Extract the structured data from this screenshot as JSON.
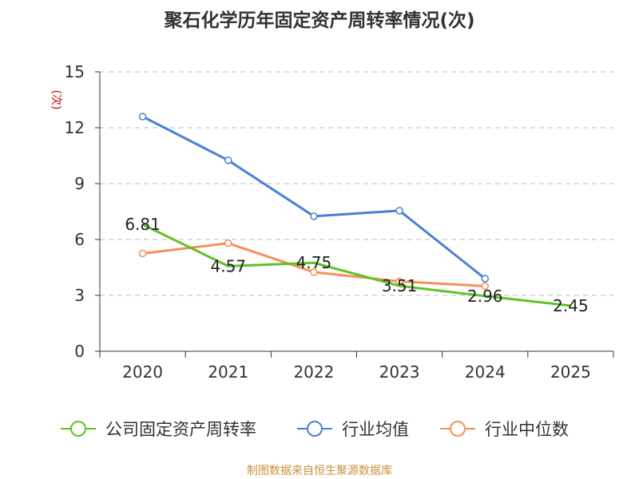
{
  "chart_data": {
    "type": "line",
    "title": "聚石化学历年固定资产周转率情况(次)",
    "ylabel": "(次)",
    "xlabel": "",
    "categories": [
      "2020",
      "2021",
      "2022",
      "2023",
      "2024",
      "2025"
    ],
    "ylim": [
      0,
      15
    ],
    "yticks": [
      0,
      3,
      6,
      9,
      12,
      15
    ],
    "grid": true,
    "legend_position": "bottom",
    "series": [
      {
        "name": "公司固定资产周转率",
        "color": "#5ec225",
        "values": [
          6.81,
          4.57,
          4.75,
          3.51,
          2.96,
          2.45
        ],
        "labels": [
          "6.81",
          "4.57",
          "4.75",
          "3.51",
          "2.96",
          "2.45"
        ]
      },
      {
        "name": "行业均值",
        "color": "#4a7ed8",
        "values": [
          12.6,
          10.25,
          7.25,
          7.55,
          3.9,
          null
        ]
      },
      {
        "name": "行业中位数",
        "color": "#f6905a",
        "values": [
          5.25,
          5.8,
          4.25,
          3.75,
          3.5,
          null
        ]
      }
    ]
  },
  "footer": {
    "source": "制图数据来自恒生聚源数据库"
  }
}
